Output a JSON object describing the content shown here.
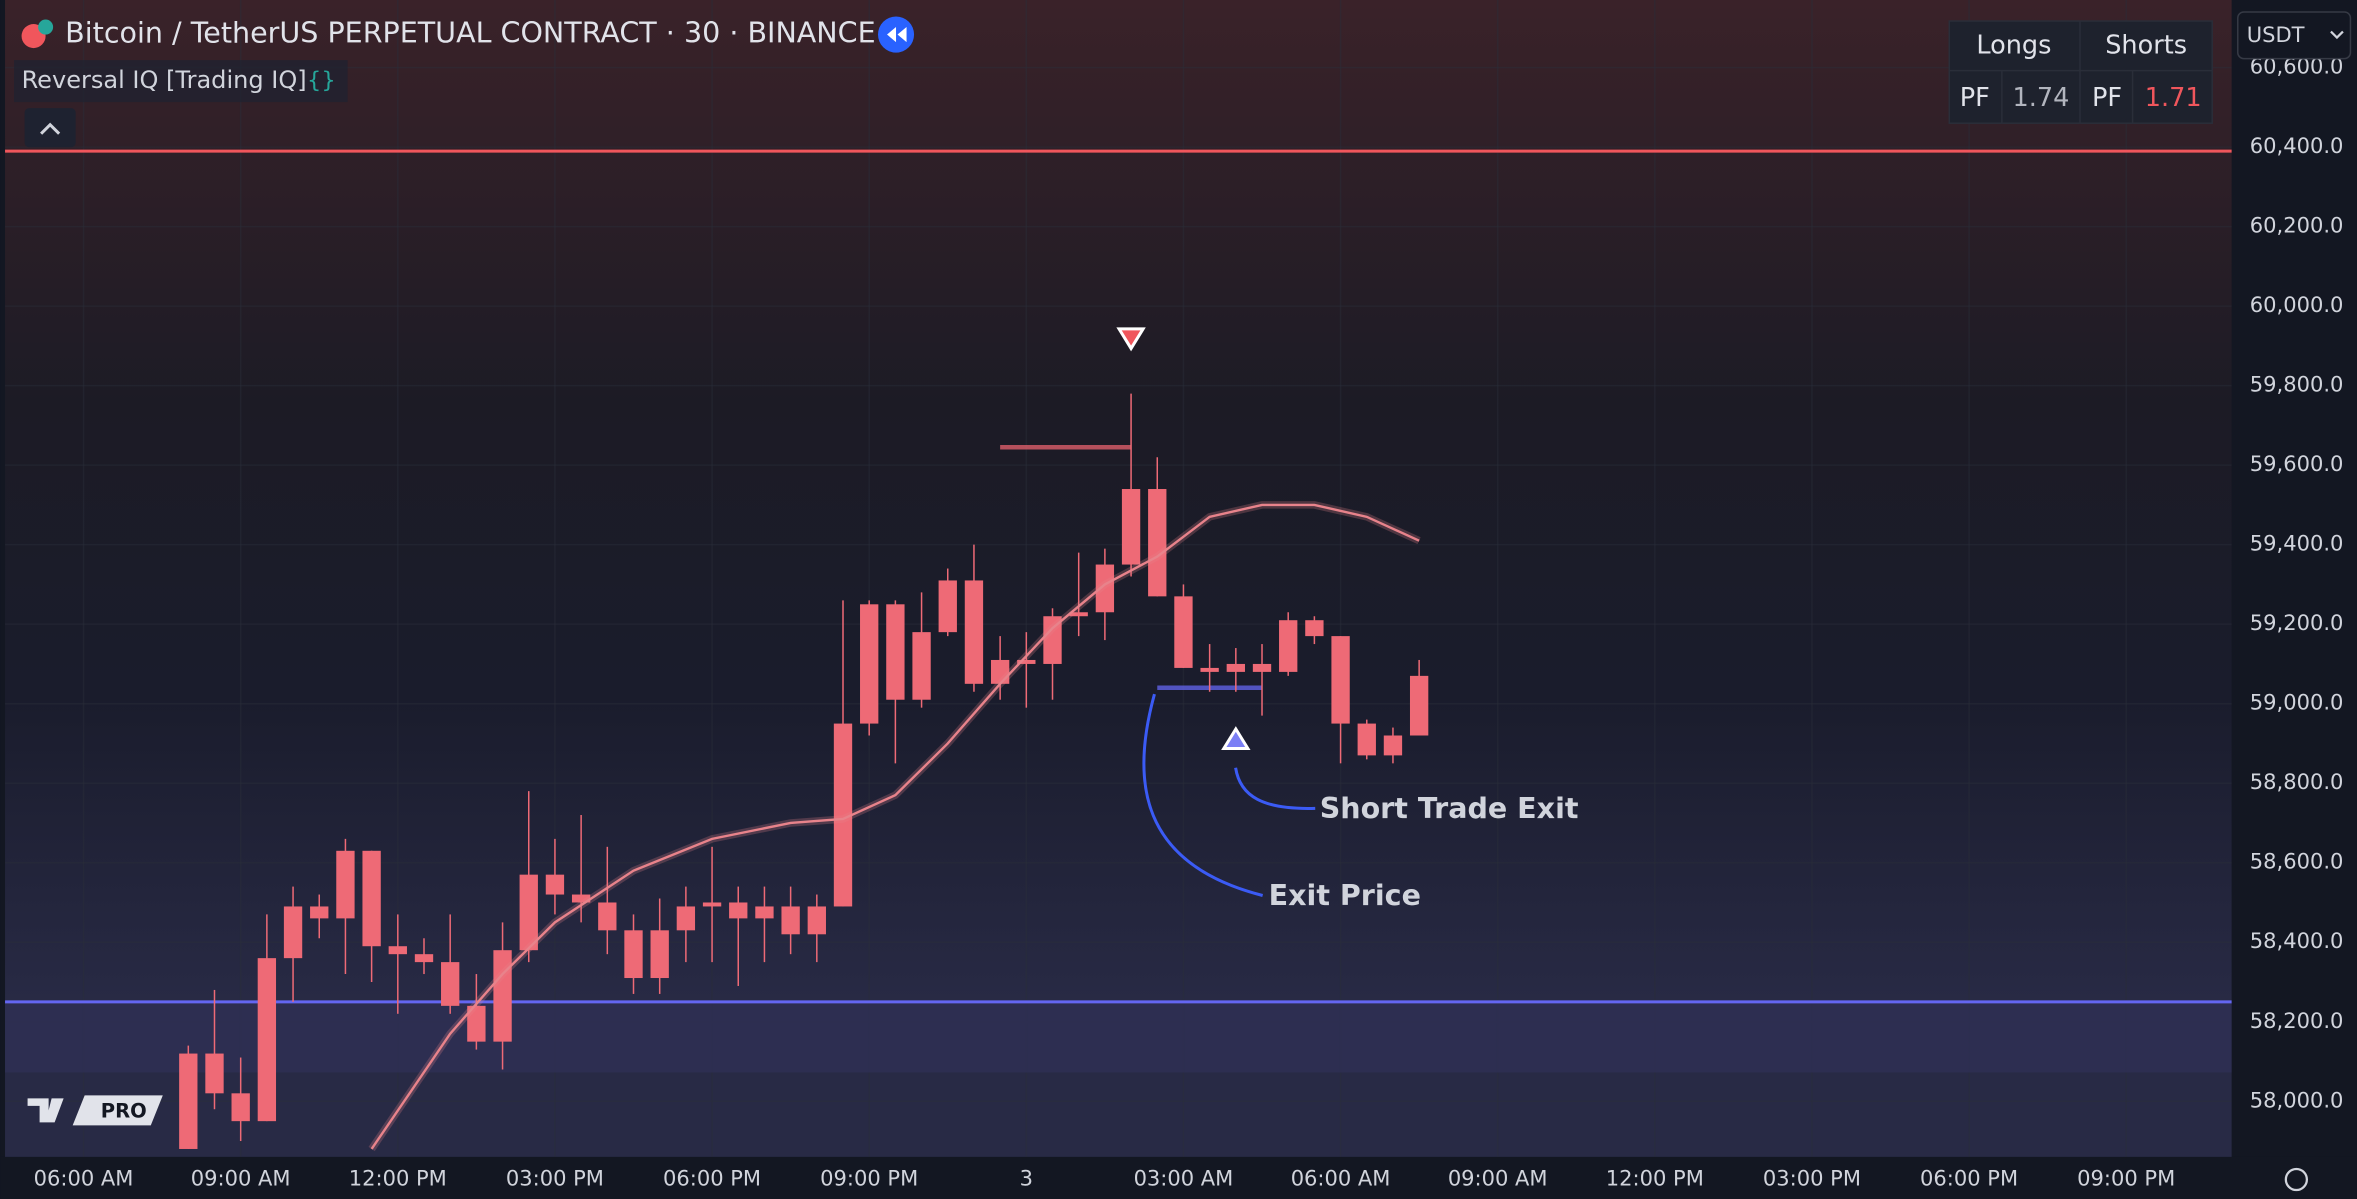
{
  "header": {
    "symbol": "Bitcoin / TetherUS PERPETUAL CONTRACT · 30 · BINANCE",
    "indicator": "Reversal IQ [Trading IQ]",
    "currency": "USDT",
    "logo": "PRO"
  },
  "stats_table": {
    "headers": [
      "Longs",
      "Shorts"
    ],
    "rows": [
      [
        "PF",
        1.74,
        "PF",
        1.71
      ]
    ]
  },
  "chart_data": {
    "type": "candlestick",
    "color": "#ee6a76",
    "x": [
      0,
      1,
      2,
      3,
      4,
      5,
      6,
      7,
      8,
      9,
      10,
      11,
      12,
      13,
      14,
      15,
      16,
      17,
      18,
      19,
      20,
      21,
      22,
      23,
      24,
      25,
      26,
      27,
      28,
      29,
      30,
      31,
      32,
      33,
      34,
      35,
      36,
      37,
      38,
      39,
      40,
      41,
      42,
      43,
      44,
      45,
      46,
      47
    ],
    "open": [
      57880,
      58120,
      58020,
      57950,
      58360,
      58490,
      58460,
      58630,
      58390,
      58370,
      58350,
      58240,
      58150,
      58380,
      58570,
      58520,
      58500,
      58430,
      58310,
      58430,
      58490,
      58500,
      58460,
      58490,
      58420,
      58490,
      58950,
      59250,
      59010,
      59180,
      59310,
      59050,
      59110,
      59100,
      59220,
      59230,
      59350,
      59540,
      59270,
      59090,
      59080,
      59100,
      59080,
      59210,
      59170,
      58950,
      58870,
      58920
    ],
    "high": [
      58140,
      58280,
      58110,
      58470,
      58540,
      58520,
      58660,
      58630,
      58470,
      58410,
      58470,
      58320,
      58450,
      58780,
      58660,
      58720,
      58640,
      58470,
      58510,
      58540,
      58640,
      58540,
      58540,
      58540,
      58520,
      59260,
      59260,
      59260,
      59280,
      59340,
      59400,
      59170,
      59180,
      59240,
      59380,
      59390,
      59780,
      59620,
      59300,
      59150,
      59140,
      59150,
      59230,
      59220,
      59170,
      58960,
      58940,
      59110
    ],
    "low": [
      57880,
      57980,
      57900,
      57950,
      58250,
      58410,
      58320,
      58300,
      58220,
      58320,
      58220,
      58130,
      58080,
      58350,
      58470,
      58450,
      58370,
      58270,
      58270,
      58350,
      58350,
      58290,
      58350,
      58370,
      58350,
      58490,
      58920,
      58850,
      58990,
      59170,
      59030,
      59010,
      58990,
      59010,
      59170,
      59160,
      59320,
      59270,
      59090,
      59030,
      59030,
      58970,
      59070,
      59150,
      58850,
      58860,
      58850,
      58920
    ],
    "close": [
      58120,
      58020,
      57950,
      58360,
      58490,
      58460,
      58630,
      58390,
      58370,
      58350,
      58240,
      58150,
      58380,
      58570,
      58520,
      58500,
      58430,
      58310,
      58430,
      58490,
      58500,
      58460,
      58490,
      58420,
      58490,
      58950,
      59250,
      59010,
      59180,
      59310,
      59050,
      59110,
      59100,
      59220,
      59230,
      59350,
      59540,
      59270,
      59090,
      59080,
      59100,
      59080,
      59210,
      59170,
      58950,
      58870,
      58920,
      59070
    ],
    "trend_line": {
      "color": "#e8838b",
      "x": [
        7,
        10,
        12,
        14,
        17,
        20,
        23,
        25,
        27,
        29,
        31,
        33,
        35,
        37,
        39,
        41,
        43,
        45,
        47
      ],
      "values": [
        57880,
        58170,
        58320,
        58450,
        58580,
        58660,
        58700,
        58710,
        58770,
        58900,
        59050,
        59190,
        59300,
        59370,
        59470,
        59500,
        59500,
        59470,
        59410
      ]
    },
    "levels": [
      {
        "value": 60390,
        "color": "#f0565c"
      },
      {
        "value": 58250,
        "color": "#6466f1"
      }
    ],
    "segments": [
      {
        "value": 59645,
        "x": [
          31,
          36
        ],
        "color": "#e8636f"
      },
      {
        "value": 59040,
        "x": [
          37,
          41
        ],
        "color": "#6466f1"
      }
    ],
    "sell_signal": {
      "x": 36,
      "value": 59920,
      "color": "#f0565c"
    },
    "buy_signal": {
      "x": 40,
      "value": 58910,
      "color": "#7b7ff5"
    },
    "annotations": [
      "Short Trade Exit",
      "Exit Price"
    ],
    "xlim": [
      -7.17,
      78.03
    ],
    "xticks": [
      {
        "value": -4,
        "label": "06:00 AM"
      },
      {
        "value": 2,
        "label": "09:00 AM"
      },
      {
        "value": 8,
        "label": "12:00 PM"
      },
      {
        "value": 14,
        "label": "03:00 PM"
      },
      {
        "value": 20,
        "label": "06:00 PM"
      },
      {
        "value": 26,
        "label": "09:00 PM"
      },
      {
        "value": 32,
        "label": "3"
      },
      {
        "value": 38,
        "label": "03:00 AM"
      },
      {
        "value": 44,
        "label": "06:00 AM"
      },
      {
        "value": 50,
        "label": "09:00 AM"
      },
      {
        "value": 56,
        "label": "12:00 PM"
      },
      {
        "value": 62,
        "label": "03:00 PM"
      },
      {
        "value": 68,
        "label": "06:00 PM"
      },
      {
        "value": 74,
        "label": "09:00 PM"
      }
    ],
    "ylim": [
      57860,
      60770
    ],
    "yticks": [
      {
        "value": 58000,
        "label": "58,000.0"
      },
      {
        "value": 58200,
        "label": "58,200.0"
      },
      {
        "value": 58400,
        "label": "58,400.0"
      },
      {
        "value": 58600,
        "label": "58,600.0"
      },
      {
        "value": 58800,
        "label": "58,800.0"
      },
      {
        "value": 59000,
        "label": "59,000.0"
      },
      {
        "value": 59200,
        "label": "59,200.0"
      },
      {
        "value": 59400,
        "label": "59,400.0"
      },
      {
        "value": 59600,
        "label": "59,600.0"
      },
      {
        "value": 59800,
        "label": "59,800.0"
      },
      {
        "value": 60000,
        "label": "60,000.0"
      },
      {
        "value": 60200,
        "label": "60,200.0"
      },
      {
        "value": 60400,
        "label": "60,400.0"
      },
      {
        "value": 60600,
        "label": "60,600.0"
      }
    ],
    "grid": true
  }
}
